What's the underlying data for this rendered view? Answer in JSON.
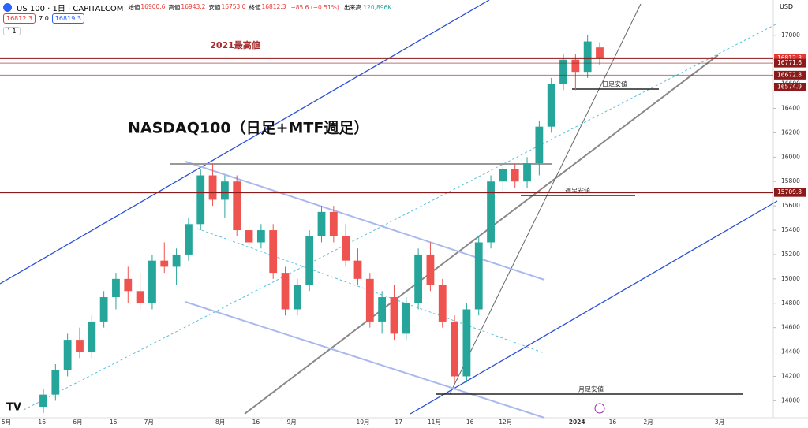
{
  "header": {
    "symbol": "US 100 · 1日 · CAPITALCOM",
    "fields": [
      {
        "label": "始値",
        "value": "16900.6"
      },
      {
        "label": "高値",
        "value": "16943.2"
      },
      {
        "label": "安値",
        "value": "16753.0"
      },
      {
        "label": "終値",
        "value": "16812.3"
      }
    ],
    "change": "−85.6 (−0.51%)",
    "volume_label": "出来高",
    "volume": "120,896K",
    "sell": "16812.3",
    "spread": "7.0",
    "buy": "16819.3",
    "interval": "1",
    "currency": "USD"
  },
  "chart_data": {
    "type": "candlestick",
    "title": "NASDAQ100（日足+MTF週足）",
    "annotations": {
      "high_2021": "2021最高値",
      "daily_low": "日足安値",
      "weekly_low": "週足安値",
      "monthly_low": "月足安値"
    },
    "categories": [
      "5月",
      "16",
      "6月",
      "16",
      "7月",
      null,
      "8月",
      "16",
      "9月",
      null,
      "10月",
      "17",
      "11月",
      "16",
      "12月",
      null,
      "2024",
      "16",
      "2月",
      null,
      "3月"
    ],
    "ylim": [
      13860,
      17290
    ],
    "yticks": [
      14000,
      14200,
      14400,
      14600,
      14800,
      15000,
      15200,
      15400,
      15600,
      15800,
      16000,
      16200,
      16400,
      16600,
      16800,
      17000
    ],
    "up_color": "#26a69a",
    "down_color": "#ef5350",
    "line_color": "#8b1a1a",
    "last_color": "#e53935",
    "price_lines": [
      16812.3,
      16771.6,
      16672.8,
      16574.9,
      15709.8
    ],
    "open": [
      13950,
      14050,
      14250,
      14500,
      14400,
      14650,
      14850,
      15000,
      14900,
      14800,
      15150,
      15100,
      15200,
      15450,
      15850,
      15650,
      15800,
      15400,
      15300,
      15400,
      15050,
      14750,
      14950,
      15350,
      15550,
      15350,
      15150,
      15000,
      14650,
      14850,
      14550,
      14800,
      15200,
      14950,
      14650,
      14200,
      14750,
      15300,
      15800,
      15900,
      15800,
      15950,
      16250,
      16600,
      16800,
      16700,
      16900.6
    ],
    "high": [
      14100,
      14300,
      14550,
      14600,
      14700,
      14900,
      15050,
      15100,
      15050,
      15200,
      15300,
      15250,
      15500,
      15900,
      15950,
      15850,
      15850,
      15500,
      15450,
      15450,
      15100,
      15000,
      15400,
      15600,
      15600,
      15450,
      15250,
      15050,
      14900,
      14950,
      14850,
      15250,
      15300,
      15000,
      14700,
      14800,
      15350,
      15850,
      15950,
      15950,
      16000,
      16300,
      16650,
      16850,
      16850,
      17000,
      16943.2
    ],
    "low": [
      13900,
      14000,
      14200,
      14350,
      14350,
      14600,
      14750,
      14800,
      14750,
      14750,
      15050,
      14950,
      15150,
      15400,
      15600,
      15500,
      15350,
      15200,
      15250,
      15000,
      14700,
      14700,
      14900,
      15300,
      15300,
      15100,
      14950,
      14600,
      14550,
      14500,
      14500,
      14750,
      14900,
      14600,
      14150,
      14150,
      14700,
      15250,
      15700,
      15750,
      15750,
      15850,
      16200,
      16550,
      16550,
      16650,
      16753.0
    ],
    "close": [
      14050,
      14250,
      14500,
      14400,
      14650,
      14850,
      15000,
      14900,
      14800,
      15150,
      15100,
      15200,
      15450,
      15850,
      15650,
      15800,
      15400,
      15300,
      15400,
      15050,
      14750,
      14950,
      15350,
      15550,
      15350,
      15150,
      15000,
      14650,
      14850,
      14550,
      14800,
      15200,
      14950,
      14650,
      14200,
      14750,
      15300,
      15800,
      15900,
      15800,
      15950,
      16250,
      16600,
      16800,
      16700,
      16950,
      16812.3
    ]
  }
}
